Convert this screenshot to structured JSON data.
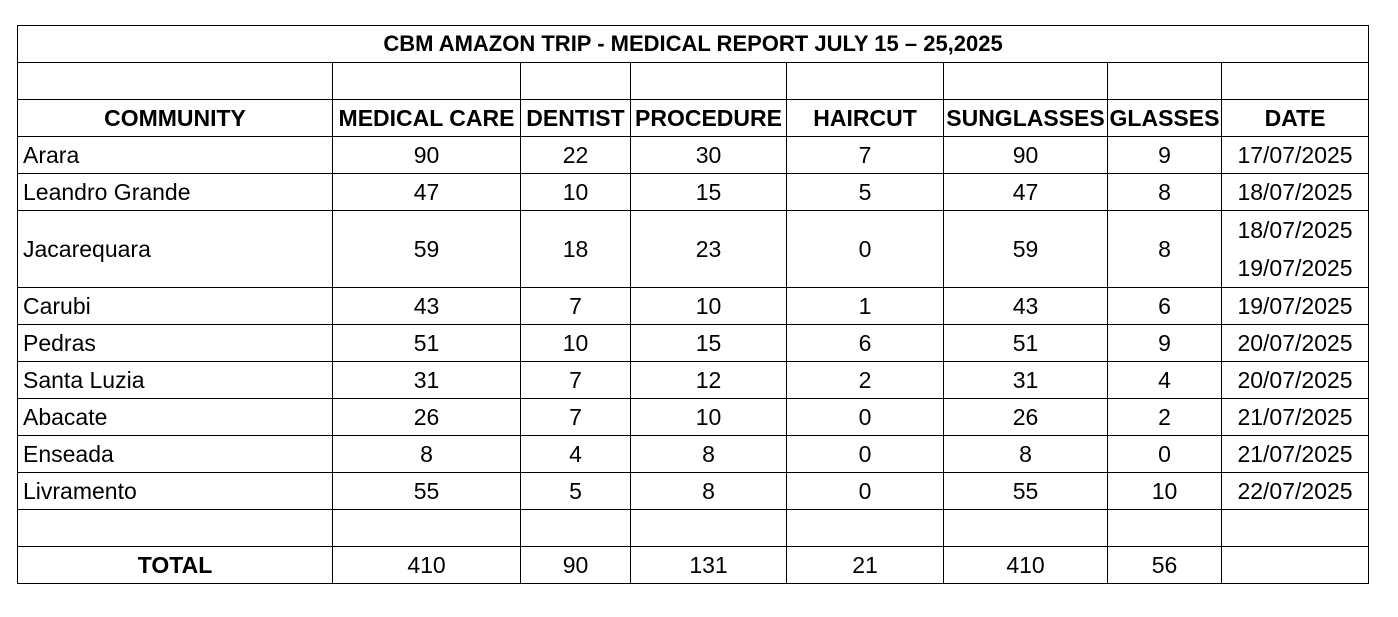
{
  "title": "CBM AMAZON TRIP  - MEDICAL REPORT JULY 15 – 25,2025",
  "columns": [
    "COMMUNITY",
    "MEDICAL CARE",
    "DENTIST",
    "PROCEDURE",
    "HAIRCUT",
    "SUNGLASSES",
    "GLASSES",
    "DATE"
  ],
  "rows": [
    {
      "community": "Arara",
      "medical_care": "90",
      "dentist": "22",
      "procedure": "30",
      "haircut": "7",
      "sunglasses": "90",
      "glasses": "9",
      "dates": [
        "17/07/2025"
      ]
    },
    {
      "community": "Leandro Grande",
      "medical_care": "47",
      "dentist": "10",
      "procedure": "15",
      "haircut": "5",
      "sunglasses": "47",
      "glasses": "8",
      "dates": [
        "18/07/2025"
      ]
    },
    {
      "community": "Jacarequara",
      "medical_care": "59",
      "dentist": "18",
      "procedure": "23",
      "haircut": "0",
      "sunglasses": "59",
      "glasses": "8",
      "dates": [
        "18/07/2025",
        "19/07/2025"
      ]
    },
    {
      "community": "Carubi",
      "medical_care": "43",
      "dentist": "7",
      "procedure": "10",
      "haircut": "1",
      "sunglasses": "43",
      "glasses": "6",
      "dates": [
        "19/07/2025"
      ]
    },
    {
      "community": "Pedras",
      "medical_care": "51",
      "dentist": "10",
      "procedure": "15",
      "haircut": "6",
      "sunglasses": "51",
      "glasses": "9",
      "dates": [
        "20/07/2025"
      ]
    },
    {
      "community": "Santa Luzia",
      "medical_care": "31",
      "dentist": "7",
      "procedure": "12",
      "haircut": "2",
      "sunglasses": "31",
      "glasses": "4",
      "dates": [
        "20/07/2025"
      ]
    },
    {
      "community": "Abacate",
      "medical_care": "26",
      "dentist": "7",
      "procedure": "10",
      "haircut": "0",
      "sunglasses": "26",
      "glasses": "2",
      "dates": [
        "21/07/2025"
      ]
    },
    {
      "community": "Enseada",
      "medical_care": "8",
      "dentist": "4",
      "procedure": "8",
      "haircut": "0",
      "sunglasses": "8",
      "glasses": "0",
      "dates": [
        "21/07/2025"
      ]
    },
    {
      "community": "Livramento",
      "medical_care": "55",
      "dentist": "5",
      "procedure": "8",
      "haircut": "0",
      "sunglasses": "55",
      "glasses": "10",
      "dates": [
        "22/07/2025"
      ]
    }
  ],
  "total": {
    "label": "TOTAL",
    "medical_care": "410",
    "dentist": "90",
    "procedure": "131",
    "haircut": "21",
    "sunglasses": "410",
    "glasses": "56",
    "date": ""
  }
}
